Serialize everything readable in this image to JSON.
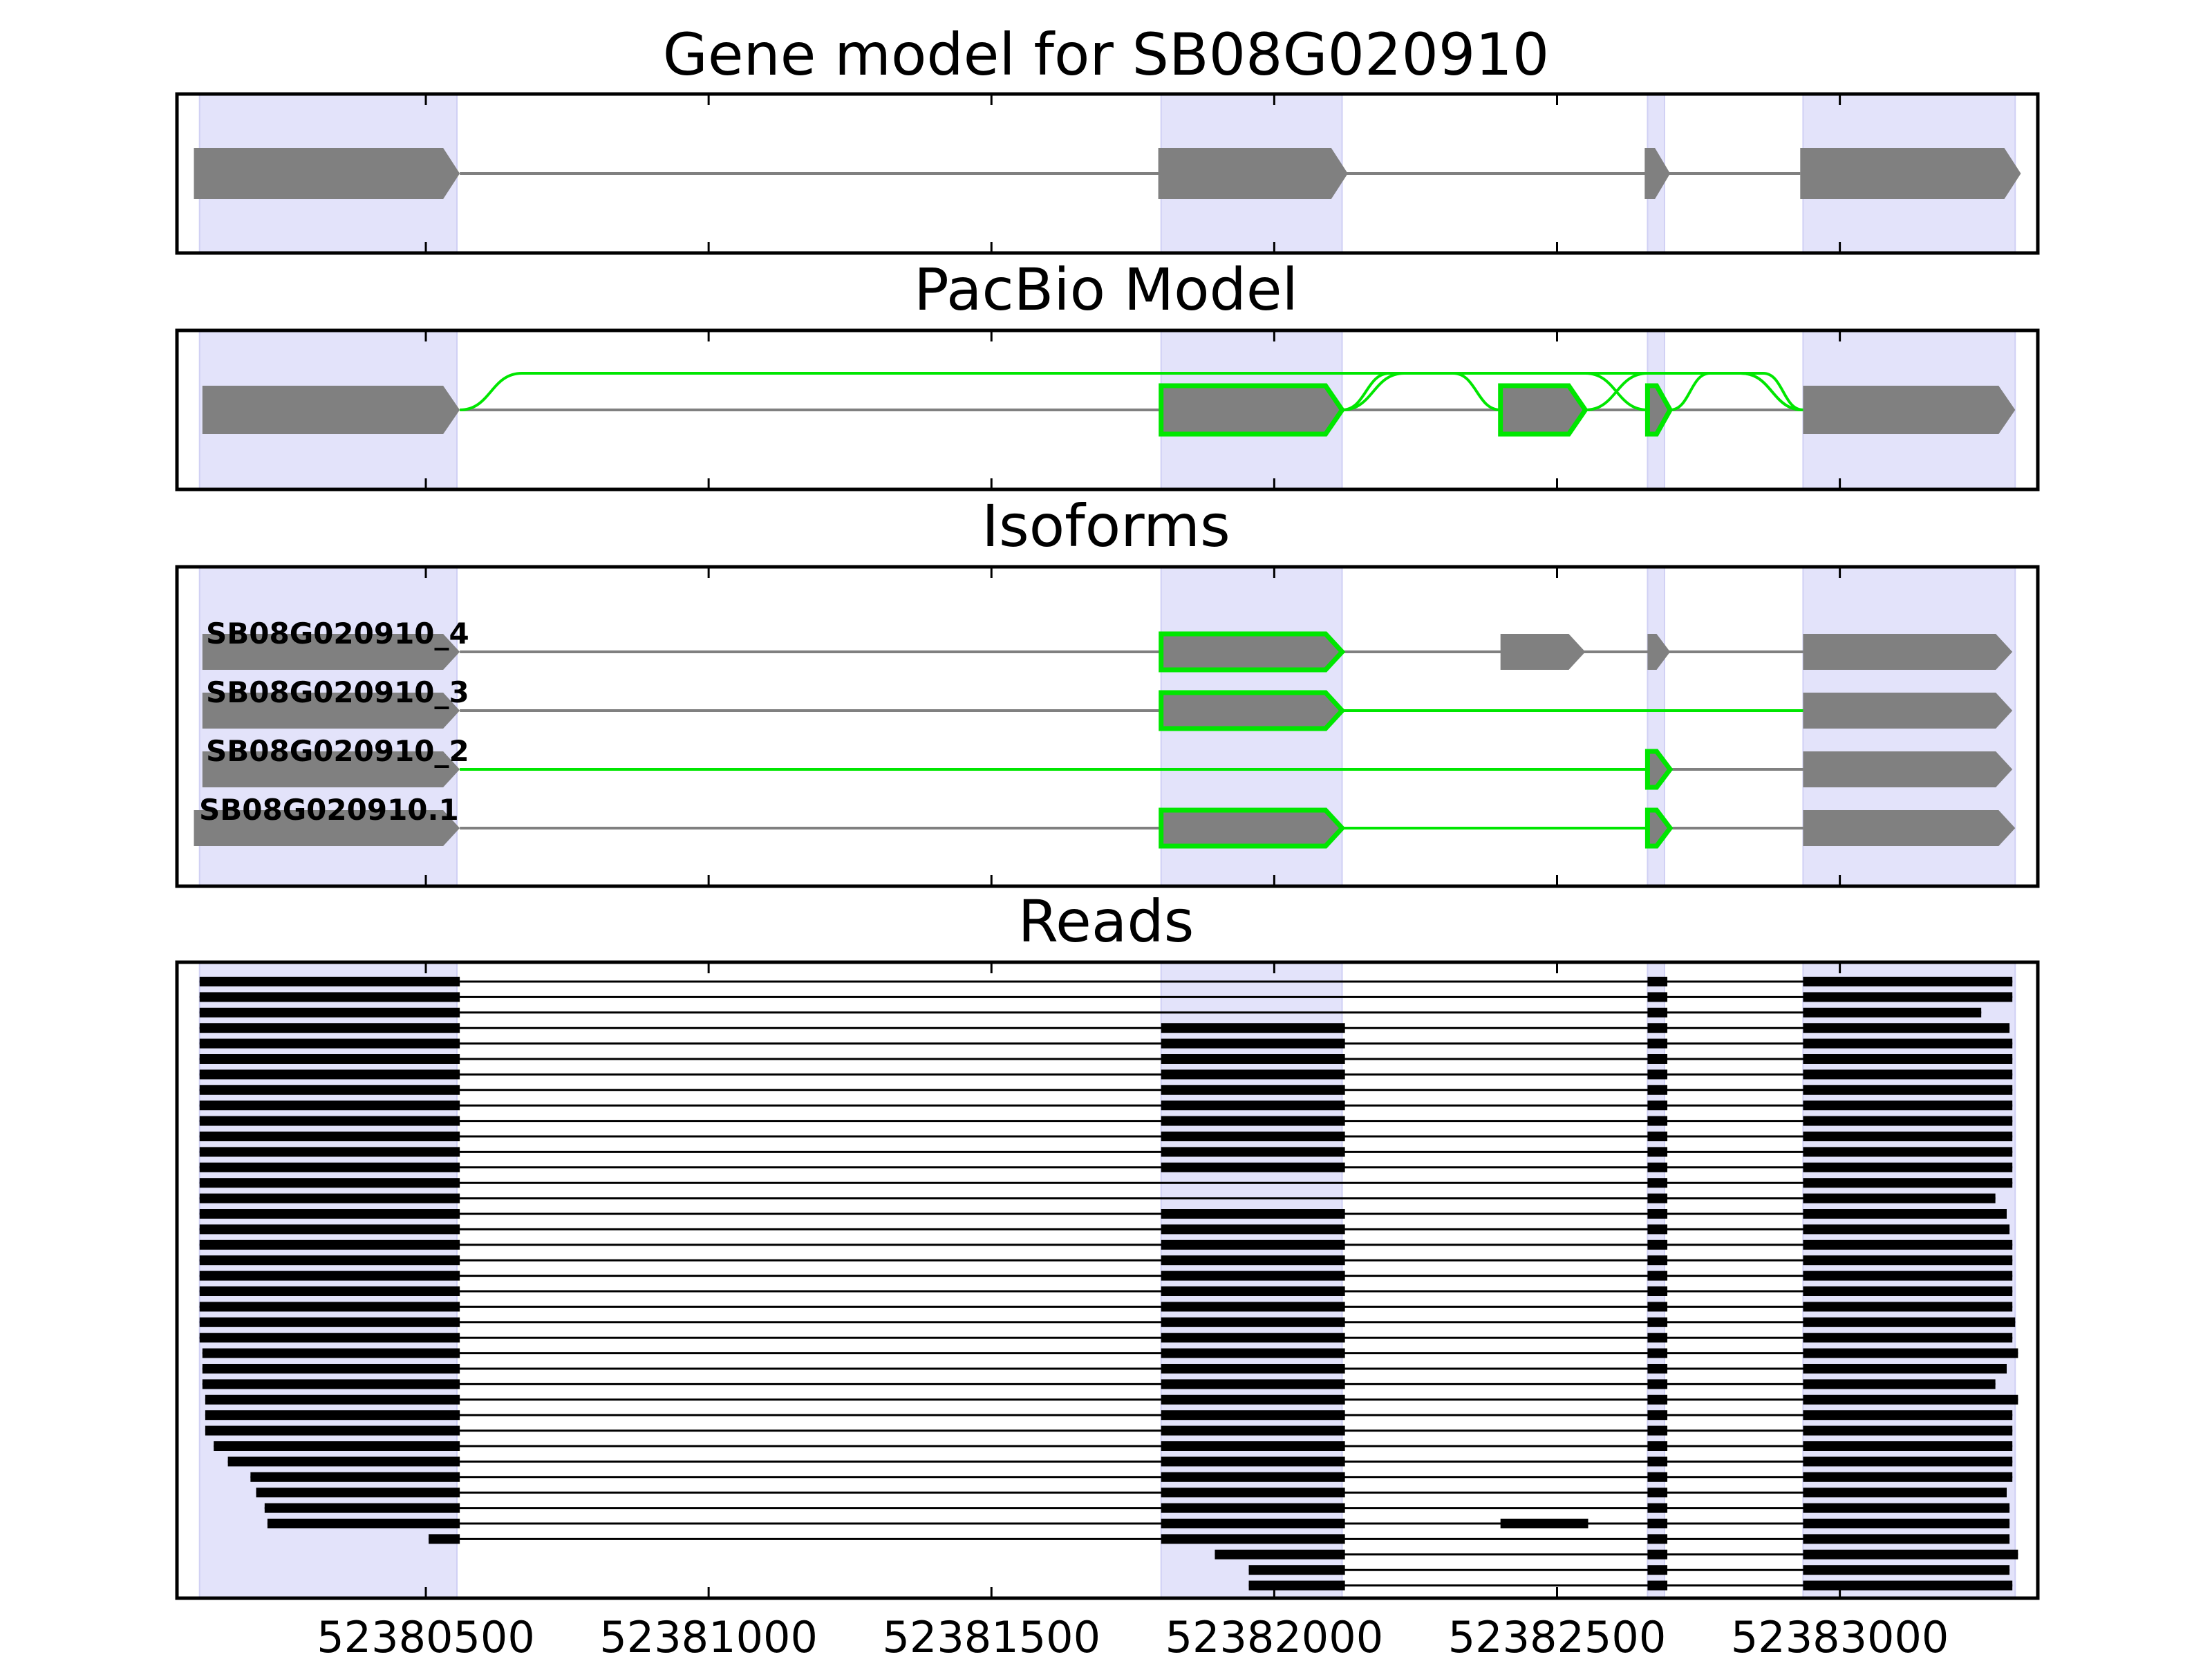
{
  "colors": {
    "exon_fill": "#808080",
    "highlight": "#00e600",
    "shade": "#e3e3fa",
    "intron": "#808080",
    "read": "#000000"
  },
  "chart_data": {
    "type": "gene-model-tracks",
    "x_ticks": [
      52380500,
      52381000,
      52381500,
      52382000,
      52382500,
      52383000
    ],
    "xlim": [
      52380060,
      52383350
    ],
    "shaded_regions": [
      [
        52380100,
        52380555
      ],
      [
        52381800,
        52382120
      ],
      [
        52382660,
        52382690
      ],
      [
        52382935,
        52383310
      ]
    ],
    "panels": [
      {
        "title": "Gene model for SB08G020910",
        "exons": [
          [
            52380090,
            52380560
          ],
          [
            52381795,
            52382130
          ],
          [
            52382655,
            52382700
          ],
          [
            52382930,
            52383320
          ]
        ],
        "strand": "+"
      },
      {
        "title": "PacBio Model",
        "exons": [
          {
            "range": [
              52380105,
              52380560
            ],
            "highlight": false
          },
          {
            "range": [
              52381800,
              52382120
            ],
            "highlight": true
          },
          {
            "range": [
              52382400,
              52382550
            ],
            "highlight": true
          },
          {
            "range": [
              52382660,
              52382700
            ],
            "highlight": true
          },
          {
            "range": [
              52382935,
              52383310
            ],
            "highlight": false
          }
        ],
        "highlighted_junctions": [
          [
            52380560,
            52382935
          ],
          [
            52382120,
            52382400
          ],
          [
            52382120,
            52382660
          ],
          [
            52382550,
            52382935
          ],
          [
            52382700,
            52382935
          ]
        ]
      },
      {
        "title": "Isoforms",
        "isoforms": [
          {
            "name": "SB08G020910_4",
            "exons": [
              {
                "range": [
                  52380105,
                  52380560
                ],
                "highlight": false
              },
              {
                "range": [
                  52381800,
                  52382120
                ],
                "highlight": true
              },
              {
                "range": [
                  52382400,
                  52382550
                ],
                "highlight": false
              },
              {
                "range": [
                  52382660,
                  52382700
                ],
                "highlight": false
              },
              {
                "range": [
                  52382935,
                  52383305
                ],
                "highlight": false
              }
            ],
            "highlighted_introns": []
          },
          {
            "name": "SB08G020910_3",
            "exons": [
              {
                "range": [
                  52380105,
                  52380560
                ],
                "highlight": false
              },
              {
                "range": [
                  52381800,
                  52382120
                ],
                "highlight": true
              },
              {
                "range": [
                  52382935,
                  52383305
                ],
                "highlight": false
              }
            ],
            "highlighted_introns": [
              [
                52382120,
                52382935
              ]
            ]
          },
          {
            "name": "SB08G020910_2",
            "exons": [
              {
                "range": [
                  52380105,
                  52380560
                ],
                "highlight": false
              },
              {
                "range": [
                  52382660,
                  52382700
                ],
                "highlight": true
              },
              {
                "range": [
                  52382935,
                  52383305
                ],
                "highlight": false
              }
            ],
            "highlighted_introns": [
              [
                52380560,
                52382660
              ]
            ]
          },
          {
            "name": "SB08G020910.1",
            "exons": [
              {
                "range": [
                  52380090,
                  52380560
                ],
                "highlight": false
              },
              {
                "range": [
                  52381800,
                  52382120
                ],
                "highlight": true
              },
              {
                "range": [
                  52382660,
                  52382700
                ],
                "highlight": true
              },
              {
                "range": [
                  52382935,
                  52383310
                ],
                "highlight": false
              }
            ],
            "highlighted_introns": [
              [
                52382120,
                52382660
              ]
            ]
          }
        ]
      },
      {
        "title": "Reads",
        "reads": [
          [
            [
              52380100,
              52380560
            ],
            [
              52382660,
              52382695
            ],
            [
              52382935,
              52383305
            ]
          ],
          [
            [
              52380100,
              52380560
            ],
            [
              52382660,
              52382695
            ],
            [
              52382935,
              52383305
            ]
          ],
          [
            [
              52380100,
              52380560
            ],
            [
              52382660,
              52382695
            ],
            [
              52382935,
              52383250
            ]
          ],
          [
            [
              52380100,
              52380560
            ],
            [
              52381800,
              52382125
            ],
            [
              52382660,
              52382695
            ],
            [
              52382935,
              52383300
            ]
          ],
          [
            [
              52380100,
              52380560
            ],
            [
              52381800,
              52382125
            ],
            [
              52382660,
              52382695
            ],
            [
              52382935,
              52383305
            ]
          ],
          [
            [
              52380100,
              52380560
            ],
            [
              52381800,
              52382125
            ],
            [
              52382660,
              52382695
            ],
            [
              52382935,
              52383305
            ]
          ],
          [
            [
              52380100,
              52380560
            ],
            [
              52381800,
              52382125
            ],
            [
              52382660,
              52382695
            ],
            [
              52382935,
              52383305
            ]
          ],
          [
            [
              52380100,
              52380560
            ],
            [
              52381800,
              52382125
            ],
            [
              52382660,
              52382695
            ],
            [
              52382935,
              52383305
            ]
          ],
          [
            [
              52380100,
              52380560
            ],
            [
              52381800,
              52382125
            ],
            [
              52382660,
              52382695
            ],
            [
              52382935,
              52383305
            ]
          ],
          [
            [
              52380100,
              52380560
            ],
            [
              52381800,
              52382125
            ],
            [
              52382660,
              52382695
            ],
            [
              52382935,
              52383305
            ]
          ],
          [
            [
              52380100,
              52380560
            ],
            [
              52381800,
              52382125
            ],
            [
              52382660,
              52382695
            ],
            [
              52382935,
              52383305
            ]
          ],
          [
            [
              52380100,
              52380560
            ],
            [
              52381800,
              52382125
            ],
            [
              52382660,
              52382695
            ],
            [
              52382935,
              52383305
            ]
          ],
          [
            [
              52380100,
              52380560
            ],
            [
              52381800,
              52382125
            ],
            [
              52382660,
              52382695
            ],
            [
              52382935,
              52383305
            ]
          ],
          [
            [
              52380100,
              52380560
            ],
            [
              52382660,
              52382695
            ],
            [
              52382935,
              52383305
            ]
          ],
          [
            [
              52380100,
              52380560
            ],
            [
              52382660,
              52382695
            ],
            [
              52382935,
              52383275
            ]
          ],
          [
            [
              52380100,
              52380560
            ],
            [
              52381800,
              52382125
            ],
            [
              52382660,
              52382695
            ],
            [
              52382935,
              52383295
            ]
          ],
          [
            [
              52380100,
              52380560
            ],
            [
              52381800,
              52382125
            ],
            [
              52382660,
              52382695
            ],
            [
              52382935,
              52383300
            ]
          ],
          [
            [
              52380100,
              52380560
            ],
            [
              52381800,
              52382125
            ],
            [
              52382660,
              52382695
            ],
            [
              52382935,
              52383305
            ]
          ],
          [
            [
              52380100,
              52380560
            ],
            [
              52381800,
              52382125
            ],
            [
              52382660,
              52382695
            ],
            [
              52382935,
              52383305
            ]
          ],
          [
            [
              52380100,
              52380560
            ],
            [
              52381800,
              52382125
            ],
            [
              52382660,
              52382695
            ],
            [
              52382935,
              52383305
            ]
          ],
          [
            [
              52380100,
              52380560
            ],
            [
              52381800,
              52382125
            ],
            [
              52382660,
              52382695
            ],
            [
              52382935,
              52383305
            ]
          ],
          [
            [
              52380100,
              52380560
            ],
            [
              52381800,
              52382125
            ],
            [
              52382660,
              52382695
            ],
            [
              52382935,
              52383305
            ]
          ],
          [
            [
              52380100,
              52380560
            ],
            [
              52381800,
              52382125
            ],
            [
              52382660,
              52382695
            ],
            [
              52382935,
              52383310
            ]
          ],
          [
            [
              52380100,
              52380560
            ],
            [
              52381800,
              52382125
            ],
            [
              52382660,
              52382695
            ],
            [
              52382935,
              52383305
            ]
          ],
          [
            [
              52380105,
              52380560
            ],
            [
              52381800,
              52382125
            ],
            [
              52382660,
              52382695
            ],
            [
              52382935,
              52383315
            ]
          ],
          [
            [
              52380105,
              52380560
            ],
            [
              52381800,
              52382125
            ],
            [
              52382660,
              52382695
            ],
            [
              52382935,
              52383295
            ]
          ],
          [
            [
              52380105,
              52380560
            ],
            [
              52381800,
              52382125
            ],
            [
              52382660,
              52382695
            ],
            [
              52382935,
              52383275
            ]
          ],
          [
            [
              52380110,
              52380560
            ],
            [
              52381800,
              52382125
            ],
            [
              52382660,
              52382695
            ],
            [
              52382935,
              52383315
            ]
          ],
          [
            [
              52380110,
              52380560
            ],
            [
              52381800,
              52382125
            ],
            [
              52382660,
              52382695
            ],
            [
              52382935,
              52383305
            ]
          ],
          [
            [
              52380110,
              52380560
            ],
            [
              52381800,
              52382125
            ],
            [
              52382660,
              52382695
            ],
            [
              52382935,
              52383305
            ]
          ],
          [
            [
              52380125,
              52380560
            ],
            [
              52381800,
              52382125
            ],
            [
              52382660,
              52382695
            ],
            [
              52382935,
              52383305
            ]
          ],
          [
            [
              52380150,
              52380560
            ],
            [
              52381800,
              52382125
            ],
            [
              52382660,
              52382695
            ],
            [
              52382935,
              52383305
            ]
          ],
          [
            [
              52380190,
              52380560
            ],
            [
              52381800,
              52382125
            ],
            [
              52382660,
              52382695
            ],
            [
              52382935,
              52383305
            ]
          ],
          [
            [
              52380200,
              52380560
            ],
            [
              52381800,
              52382125
            ],
            [
              52382660,
              52382695
            ],
            [
              52382935,
              52383295
            ]
          ],
          [
            [
              52380215,
              52380560
            ],
            [
              52381800,
              52382125
            ],
            [
              52382660,
              52382695
            ],
            [
              52382935,
              52383300
            ]
          ],
          [
            [
              52380220,
              52380560
            ],
            [
              52381800,
              52382125
            ],
            [
              52382400,
              52382555
            ],
            [
              52382660,
              52382695
            ],
            [
              52382935,
              52383300
            ]
          ],
          [
            [
              52380505,
              52380560
            ],
            [
              52381800,
              52382125
            ],
            [
              52382660,
              52382695
            ],
            [
              52382935,
              52383300
            ]
          ],
          [
            [
              52381895,
              52382125
            ],
            [
              52382660,
              52382695
            ],
            [
              52382935,
              52383315
            ]
          ],
          [
            [
              52381955,
              52382125
            ],
            [
              52382660,
              52382695
            ],
            [
              52382935,
              52383300
            ]
          ],
          [
            [
              52381955,
              52382125
            ],
            [
              52382660,
              52382695
            ],
            [
              52382935,
              52383305
            ]
          ]
        ]
      }
    ]
  }
}
